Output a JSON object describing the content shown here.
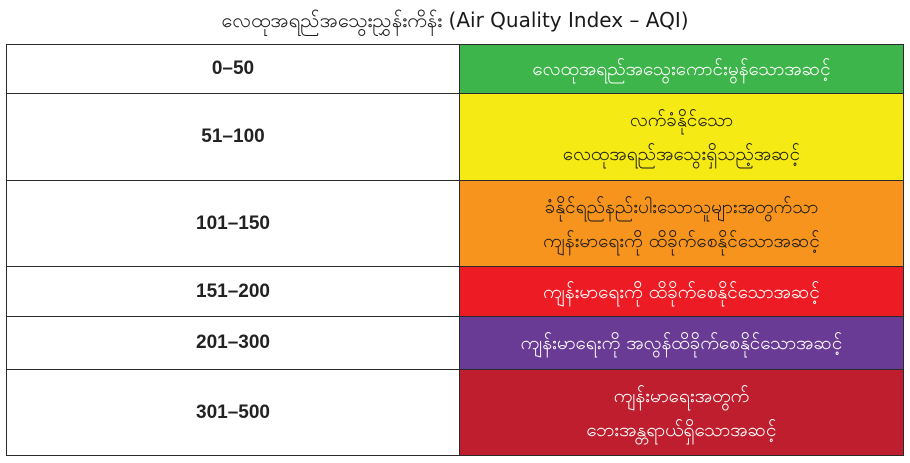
{
  "title": "လေထုအရည်အသွေးညွှန်းကိန်း (Air Quality Index – AQI)",
  "rows": [
    {
      "range": "0–50",
      "lines": [
        "လေထုအရည်အသွေးကောင်းမွန်သောအဆင့်"
      ],
      "color": "#3db54a",
      "text_color": "#ffffff"
    },
    {
      "range": "51–100",
      "lines": [
        "လက်ခံနိုင်သော",
        "လေထုအရည်အသွေးရှိသည့်အဆင့်"
      ],
      "color": "#f5ea14",
      "text_color": "#1a1a1a"
    },
    {
      "range": "101–150",
      "lines": [
        "ခံနိုင်ရည်နည်းပါးသောသူများအတွက်သာ",
        "ကျန်းမာရေးကို ထိခိုက်စေနိုင်သောအဆင့်"
      ],
      "color": "#f7941d",
      "text_color": "#1a1a1a"
    },
    {
      "range": "151–200",
      "lines": [
        "ကျန်းမာရေးကို ထိခိုက်စေနိုင်သောအဆင့်"
      ],
      "color": "#ed1c24",
      "text_color": "#ffffff"
    },
    {
      "range": "201–300",
      "lines": [
        "ကျန်းမာရေးကို အလွန်ထိခိုက်စေနိုင်သောအဆင့်"
      ],
      "color": "#6a3b95",
      "text_color": "#ffffff"
    },
    {
      "range": "301–500",
      "lines": [
        "ကျန်းမာရေးအတွက်",
        "ဘေးအန္တရာယ်ရှိသောအဆင့်"
      ],
      "color": "#be1e2d",
      "text_color": "#ffffff"
    }
  ]
}
